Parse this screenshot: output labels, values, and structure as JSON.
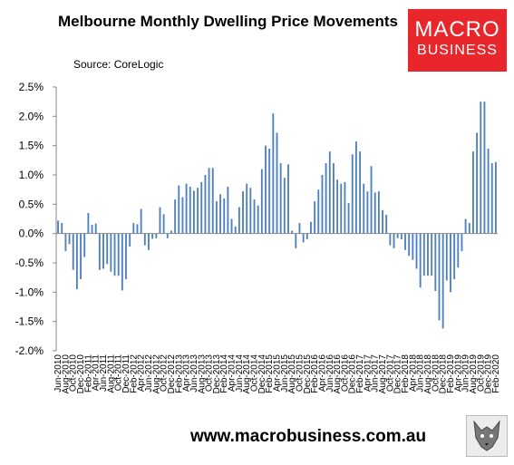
{
  "header": {
    "title": "Melbourne Monthly Dwelling Price Movements",
    "subtitle": "Source: CoreLogic"
  },
  "logo": {
    "line1": "MACRO",
    "line2": "BUSINESS"
  },
  "footer": {
    "url": "www.macrobusiness.com.au"
  },
  "colors": {
    "bar": "#4f81bd",
    "logo_bg": "#e8262b"
  },
  "chart_data": {
    "type": "bar",
    "title": "Melbourne Monthly Dwelling Price Movements",
    "subtitle": "Source: CoreLogic",
    "xlabel": "",
    "ylabel": "",
    "ylim": [
      -2.0,
      2.5
    ],
    "yticks": [
      "-2.0%",
      "-1.5%",
      "-1.0%",
      "-0.5%",
      "0.0%",
      "0.5%",
      "1.0%",
      "1.5%",
      "2.0%",
      "2.5%"
    ],
    "grid": false,
    "legend": "none",
    "xtick_labels": [
      "Jun-2010",
      "Aug-2010",
      "Oct-2010",
      "Dec-2010",
      "Feb-2011",
      "Apr-2011",
      "Jun-2011",
      "Aug-2011",
      "Oct-2011",
      "Dec-2011",
      "Feb-2012",
      "Apr-2012",
      "Jun-2012",
      "Aug-2012",
      "Oct-2012",
      "Dec-2012",
      "Feb-2013",
      "Apr-2013",
      "Jun-2013",
      "Aug-2013",
      "Oct-2013",
      "Dec-2013",
      "Feb-2014",
      "Apr-2014",
      "Jun-2014",
      "Aug-2014",
      "Oct-2014",
      "Dec-2014",
      "Feb-2015",
      "Apr-2015",
      "Jun-2015",
      "Aug-2015",
      "Oct-2015",
      "Dec-2015",
      "Feb-2016",
      "Apr-2016",
      "Jun-2016",
      "Aug-2016",
      "Oct-2016",
      "Dec-2016",
      "Feb-2017",
      "Apr-2017",
      "Jun-2017",
      "Aug-2017",
      "Oct-2017",
      "Dec-2017",
      "Feb-2018",
      "Apr-2018",
      "Jun-2018",
      "Aug-2018",
      "Oct-2018",
      "Dec-2018",
      "Feb-2019",
      "Apr-2019",
      "Jun-2019",
      "Aug-2019",
      "Oct-2019",
      "Dec-2019",
      "Feb-2020"
    ],
    "categories": [
      "Jun-2010",
      "Jul-2010",
      "Aug-2010",
      "Sep-2010",
      "Oct-2010",
      "Nov-2010",
      "Dec-2010",
      "Jan-2011",
      "Feb-2011",
      "Mar-2011",
      "Apr-2011",
      "May-2011",
      "Jun-2011",
      "Jul-2011",
      "Aug-2011",
      "Sep-2011",
      "Oct-2011",
      "Nov-2011",
      "Dec-2011",
      "Jan-2012",
      "Feb-2012",
      "Mar-2012",
      "Apr-2012",
      "May-2012",
      "Jun-2012",
      "Jul-2012",
      "Aug-2012",
      "Sep-2012",
      "Oct-2012",
      "Nov-2012",
      "Dec-2012",
      "Jan-2013",
      "Feb-2013",
      "Mar-2013",
      "Apr-2013",
      "May-2013",
      "Jun-2013",
      "Jul-2013",
      "Aug-2013",
      "Sep-2013",
      "Oct-2013",
      "Nov-2013",
      "Dec-2013",
      "Jan-2014",
      "Feb-2014",
      "Mar-2014",
      "Apr-2014",
      "May-2014",
      "Jun-2014",
      "Jul-2014",
      "Aug-2014",
      "Sep-2014",
      "Oct-2014",
      "Nov-2014",
      "Dec-2014",
      "Jan-2015",
      "Feb-2015",
      "Mar-2015",
      "Apr-2015",
      "May-2015",
      "Jun-2015",
      "Jul-2015",
      "Aug-2015",
      "Sep-2015",
      "Oct-2015",
      "Nov-2015",
      "Dec-2015",
      "Jan-2016",
      "Feb-2016",
      "Mar-2016",
      "Apr-2016",
      "May-2016",
      "Jun-2016",
      "Jul-2016",
      "Aug-2016",
      "Sep-2016",
      "Oct-2016",
      "Nov-2016",
      "Dec-2016",
      "Jan-2017",
      "Feb-2017",
      "Mar-2017",
      "Apr-2017",
      "May-2017",
      "Jun-2017",
      "Jul-2017",
      "Aug-2017",
      "Sep-2017",
      "Oct-2017",
      "Nov-2017",
      "Dec-2017",
      "Jan-2018",
      "Feb-2018",
      "Mar-2018",
      "Apr-2018",
      "May-2018",
      "Jun-2018",
      "Jul-2018",
      "Aug-2018",
      "Sep-2018",
      "Oct-2018",
      "Nov-2018",
      "Dec-2018",
      "Jan-2019",
      "Feb-2019",
      "Mar-2019",
      "Apr-2019",
      "May-2019",
      "Jun-2019",
      "Jul-2019",
      "Aug-2019",
      "Sep-2019",
      "Oct-2019",
      "Nov-2019",
      "Dec-2019",
      "Jan-2020",
      "Feb-2020"
    ],
    "values": [
      0.22,
      0.18,
      -0.3,
      -0.18,
      -0.62,
      -0.95,
      -0.78,
      -0.4,
      0.35,
      0.15,
      0.17,
      -0.62,
      -0.6,
      -0.52,
      -0.65,
      -0.72,
      -0.72,
      -0.97,
      -0.78,
      -0.22,
      0.18,
      0.16,
      0.42,
      -0.2,
      -0.28,
      -0.09,
      -0.08,
      0.45,
      0.33,
      -0.08,
      0.05,
      0.58,
      0.82,
      0.62,
      0.85,
      0.8,
      0.73,
      0.78,
      0.88,
      1.0,
      1.12,
      1.12,
      0.55,
      0.67,
      0.6,
      0.8,
      0.25,
      0.12,
      0.45,
      0.72,
      0.85,
      0.78,
      0.58,
      0.48,
      1.1,
      1.5,
      1.45,
      2.05,
      1.72,
      1.2,
      0.95,
      1.18,
      0.05,
      -0.25,
      0.18,
      -0.15,
      -0.1,
      0.2,
      0.55,
      0.75,
      1.0,
      1.2,
      1.4,
      1.2,
      0.92,
      0.85,
      0.88,
      0.52,
      1.35,
      1.57,
      1.4,
      0.85,
      0.72,
      1.15,
      0.7,
      0.72,
      0.4,
      0.32,
      -0.2,
      -0.25,
      -0.08,
      -0.1,
      -0.28,
      -0.38,
      -0.45,
      -0.6,
      -0.92,
      -0.72,
      -0.72,
      -0.72,
      -0.98,
      -1.48,
      -1.62,
      -0.8,
      -1.0,
      -0.78,
      -0.58,
      -0.3,
      0.25,
      0.18,
      1.4,
      1.72,
      2.25,
      2.25,
      1.45,
      1.2,
      1.22
    ]
  }
}
